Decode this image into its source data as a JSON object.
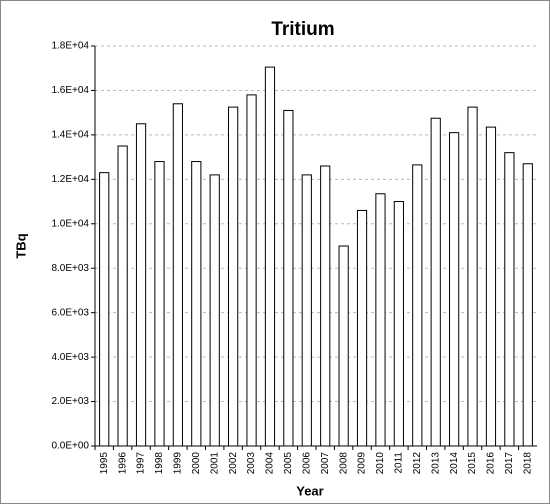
{
  "chart_data": {
    "type": "bar",
    "title": "Tritium",
    "x_label": "Year",
    "y_label": "TBq",
    "categories": [
      "1995",
      "1996",
      "1997",
      "1998",
      "1999",
      "2000",
      "2001",
      "2002",
      "2003",
      "2004",
      "2005",
      "2006",
      "2007",
      "2008",
      "2009",
      "2010",
      "2011",
      "2012",
      "2013",
      "2014",
      "2015",
      "2016",
      "2017",
      "2018"
    ],
    "values": [
      12300,
      13500,
      14500,
      12800,
      15400,
      12800,
      12200,
      15250,
      15800,
      17050,
      15100,
      12200,
      12600,
      9000,
      10600,
      11350,
      11000,
      12650,
      14750,
      14100,
      15250,
      14350,
      13200,
      12700
    ],
    "color": "#ffffff",
    "ylim": [
      0,
      18000
    ],
    "yticks": [
      {
        "value": 0,
        "label": "0.0E+00"
      },
      {
        "value": 2000,
        "label": "2.0E+03"
      },
      {
        "value": 4000,
        "label": "4.0E+03"
      },
      {
        "value": 6000,
        "label": "6.0E+03"
      },
      {
        "value": 8000,
        "label": "8.0E+03"
      },
      {
        "value": 10000,
        "label": "1.0E+04"
      },
      {
        "value": 12000,
        "label": "1.2E+04"
      },
      {
        "value": 14000,
        "label": "1.4E+04"
      },
      {
        "value": 16000,
        "label": "1.6E+04"
      },
      {
        "value": 18000,
        "label": "1.8E+04"
      }
    ],
    "grid": true
  }
}
